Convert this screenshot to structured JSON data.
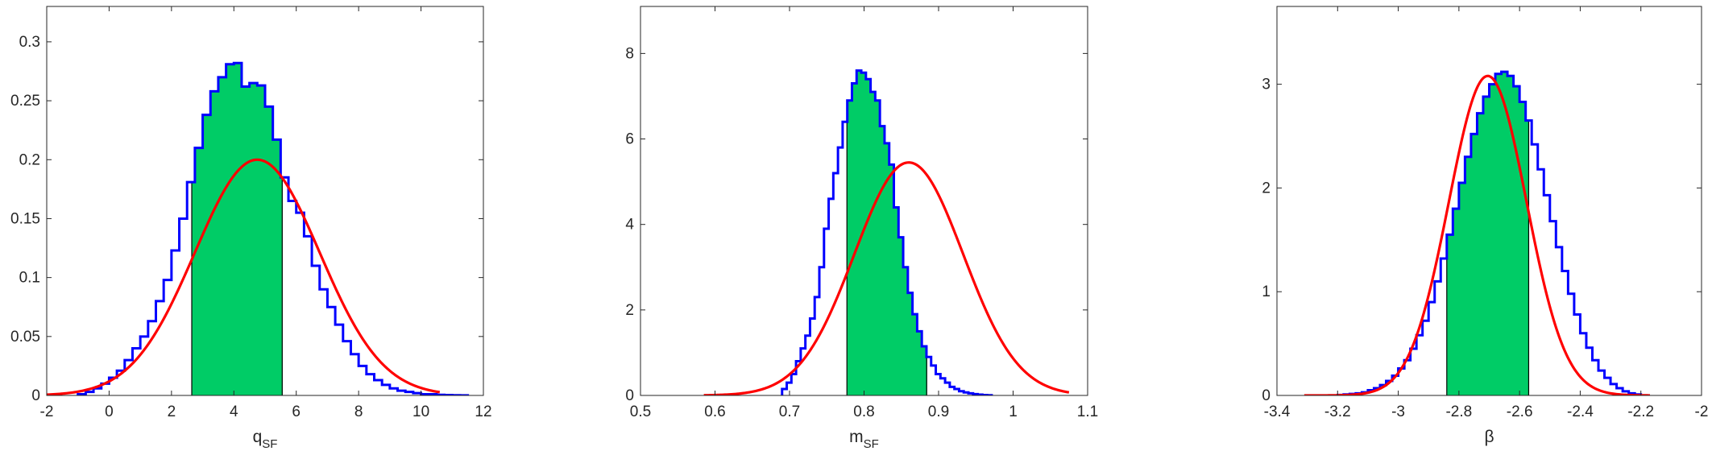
{
  "colors": {
    "hist_line": "#0000ff",
    "fill": "#00cc66",
    "fit": "#ff0000",
    "axis": "#262626"
  },
  "chart_data": [
    {
      "type": "bar",
      "subtype": "stairs histogram with shaded credible interval and gaussian fit",
      "xlabel": {
        "main": "q",
        "sub": "SF"
      },
      "xlim": [
        -2,
        12
      ],
      "ylim": [
        0,
        0.33
      ],
      "xticks": [
        "-2",
        "0",
        "2",
        "4",
        "6",
        "8",
        "10",
        "12"
      ],
      "yticks": [
        "0",
        "0.05",
        "0.1",
        "0.15",
        "0.2",
        "0.25",
        "0.3"
      ],
      "hist": {
        "bin_edges_start": -1.0,
        "bin_width": 0.25,
        "values": [
          0.001,
          0.003,
          0.006,
          0.01,
          0.015,
          0.021,
          0.03,
          0.04,
          0.05,
          0.063,
          0.08,
          0.098,
          0.123,
          0.15,
          0.181,
          0.21,
          0.238,
          0.258,
          0.27,
          0.281,
          0.282,
          0.262,
          0.265,
          0.263,
          0.245,
          0.217,
          0.185,
          0.165,
          0.155,
          0.135,
          0.11,
          0.09,
          0.075,
          0.06,
          0.046,
          0.035,
          0.025,
          0.018,
          0.013,
          0.009,
          0.006,
          0.004,
          0.003,
          0.002,
          0.001,
          0.001,
          0.0005,
          0.0003,
          0.0002,
          0.0001
        ]
      },
      "interval": [
        2.65,
        5.55
      ],
      "fit": {
        "mean": 4.75,
        "sd": 2.0,
        "peak": 0.2,
        "x_range": [
          -2,
          10.6
        ]
      }
    },
    {
      "type": "bar",
      "subtype": "stairs histogram with shaded credible interval and gaussian fit",
      "xlabel": {
        "main": "m",
        "sub": "SF"
      },
      "xlim": [
        0.5,
        1.1
      ],
      "ylim": [
        0,
        9.1
      ],
      "xticks": [
        "0.5",
        "0.6",
        "0.7",
        "0.8",
        "0.9",
        "1",
        "1.1"
      ],
      "yticks": [
        "0",
        "2",
        "4",
        "6",
        "8"
      ],
      "hist": {
        "bin_edges_start": 0.69,
        "bin_width": 0.00625,
        "values": [
          0.15,
          0.3,
          0.5,
          0.8,
          1.1,
          1.4,
          1.8,
          2.3,
          3.0,
          3.9,
          4.6,
          5.2,
          5.8,
          6.4,
          6.9,
          7.3,
          7.6,
          7.55,
          7.4,
          7.1,
          6.9,
          6.3,
          5.9,
          5.4,
          4.4,
          3.7,
          3.0,
          2.4,
          1.9,
          1.5,
          1.15,
          0.9,
          0.7,
          0.5,
          0.4,
          0.3,
          0.2,
          0.15,
          0.1,
          0.07,
          0.05,
          0.03,
          0.02,
          0.01,
          0.005
        ]
      },
      "interval": [
        0.777,
        0.884
      ],
      "fit": {
        "mean": 0.86,
        "sd": 0.073,
        "peak": 5.45,
        "x_range": [
          0.585,
          1.075
        ]
      }
    },
    {
      "type": "bar",
      "subtype": "stairs histogram with shaded credible interval and gaussian fit",
      "xlabel": {
        "main": "β",
        "sub": ""
      },
      "xlim": [
        -3.4,
        -2.0
      ],
      "ylim": [
        0,
        3.75
      ],
      "xticks": [
        "-3.4",
        "-3.2",
        "-3",
        "-2.8",
        "-2.6",
        "-2.4",
        "-2.2",
        "-2"
      ],
      "yticks": [
        "0",
        "1",
        "2",
        "3"
      ],
      "hist": {
        "bin_edges_start": -3.2,
        "bin_width": 0.02,
        "values": [
          0.005,
          0.01,
          0.015,
          0.02,
          0.03,
          0.05,
          0.07,
          0.1,
          0.14,
          0.19,
          0.26,
          0.34,
          0.45,
          0.58,
          0.72,
          0.9,
          1.1,
          1.32,
          1.55,
          1.8,
          2.05,
          2.3,
          2.52,
          2.72,
          2.88,
          3.0,
          3.1,
          3.12,
          3.08,
          2.98,
          2.83,
          2.65,
          2.42,
          2.18,
          1.93,
          1.68,
          1.43,
          1.2,
          0.98,
          0.78,
          0.6,
          0.46,
          0.34,
          0.24,
          0.17,
          0.11,
          0.07,
          0.04,
          0.02,
          0.01
        ]
      },
      "interval": [
        -2.84,
        -2.57
      ],
      "fit": {
        "mean": -2.705,
        "sd": 0.128,
        "peak": 3.08,
        "x_range": [
          -3.31,
          -2.17
        ]
      }
    }
  ]
}
